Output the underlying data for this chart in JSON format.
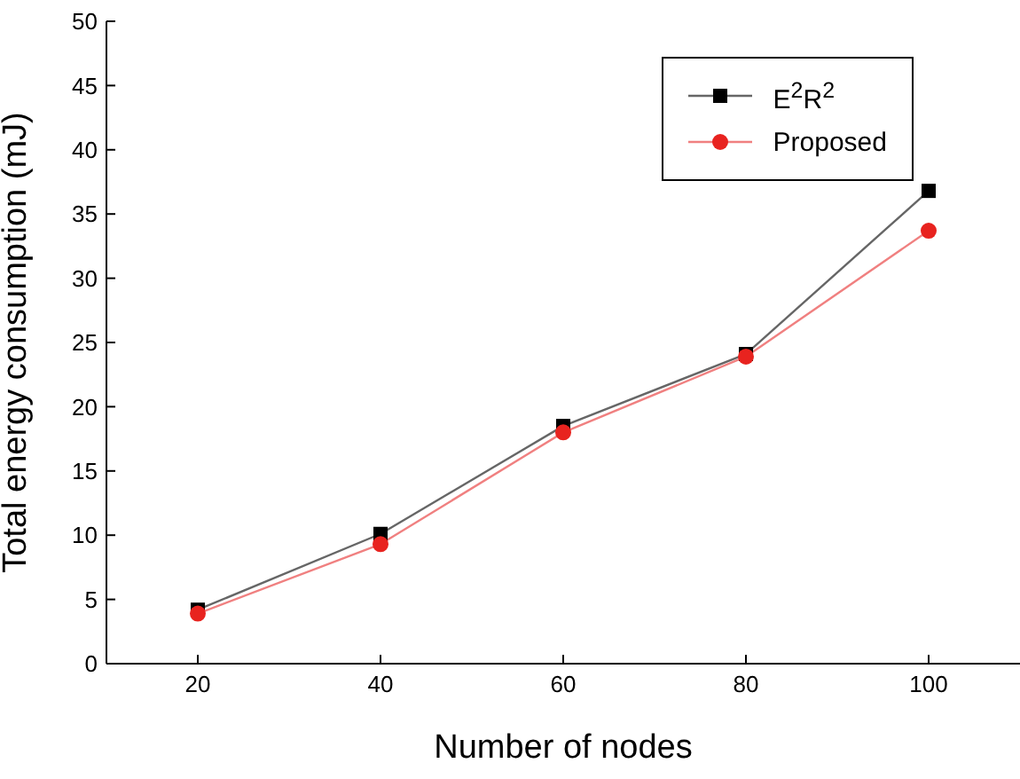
{
  "chart_data": {
    "type": "line",
    "xlabel": "Number of nodes",
    "ylabel": "Total energy consumption (mJ)",
    "x": [
      20,
      40,
      60,
      80,
      100
    ],
    "series": [
      {
        "name": "E$^{2}$R$^{2}$",
        "color": "#000000",
        "marker": "square",
        "values": [
          4.2,
          10.1,
          18.5,
          24.1,
          36.8
        ]
      },
      {
        "name": "Proposed",
        "color": "#e8231f",
        "marker": "circle",
        "values": [
          3.9,
          9.3,
          18.0,
          23.9,
          33.7
        ]
      }
    ],
    "xlim": [
      10,
      110
    ],
    "xticks": [
      20,
      40,
      60,
      80,
      100
    ],
    "ylim": [
      0,
      50
    ],
    "yticks": [
      0,
      5,
      10,
      15,
      20,
      25,
      30,
      35,
      40,
      45,
      50
    ],
    "legend": "top right"
  }
}
